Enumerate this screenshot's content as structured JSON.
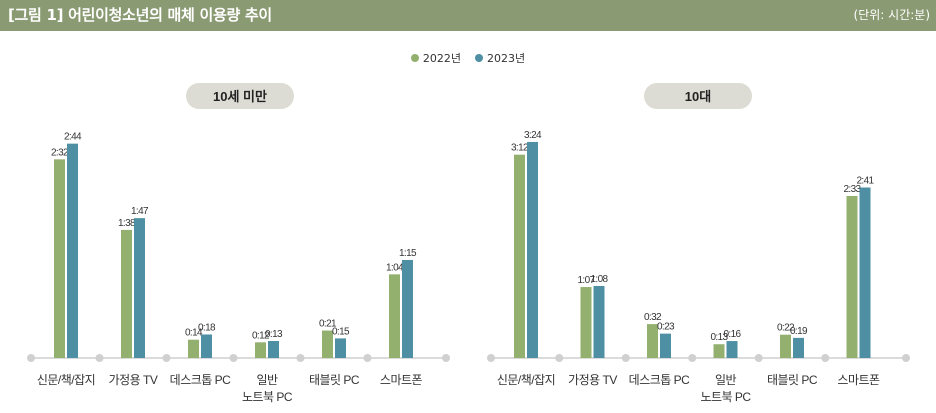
{
  "header": {
    "title": "[그림 1]  어린이청소년의 매체 이용량 추이",
    "unit": "(단위: 시간:분)"
  },
  "colors": {
    "header_bg": "#8a9a72",
    "series_2022": "#93b06e",
    "series_2023": "#4e8fa3",
    "panel_label_bg": "#dcdcd4",
    "axis": "#cfcfcf"
  },
  "chart_data": [
    {
      "type": "bar",
      "title": "10세 미만",
      "categories": [
        "신문/책/잡지",
        "가정용 TV",
        "데스크톱 PC",
        "일반\n노트북 PC",
        "태블릿 PC",
        "스마트폰"
      ],
      "series": [
        {
          "name": "2022년",
          "values": [
            152,
            98,
            14,
            12,
            21,
            64
          ],
          "labels": [
            "2:32",
            "1:38",
            "0:14",
            "0:12",
            "0:21",
            "1:04"
          ]
        },
        {
          "name": "2023년",
          "values": [
            164,
            107,
            18,
            13,
            15,
            75
          ],
          "labels": [
            "2:44",
            "1:47",
            "0:18",
            "0:13",
            "0:15",
            "1:15"
          ]
        }
      ],
      "unit": "분",
      "ylim": [
        0,
        210
      ],
      "grid": false
    },
    {
      "type": "bar",
      "title": "10대",
      "categories": [
        "신문/책/잡지",
        "가정용 TV",
        "데스크톱 PC",
        "일반\n노트북 PC",
        "태블릿 PC",
        "스마트폰"
      ],
      "series": [
        {
          "name": "2022년",
          "values": [
            192,
            67,
            32,
            13,
            22,
            153
          ],
          "labels": [
            "3:12",
            "1:07",
            "0:32",
            "0:13",
            "0:22",
            "2:33"
          ]
        },
        {
          "name": "2023년",
          "values": [
            204,
            68,
            23,
            16,
            19,
            161
          ],
          "labels": [
            "3:24",
            "1:08",
            "0:23",
            "0:16",
            "0:19",
            "2:41"
          ]
        }
      ],
      "unit": "분",
      "ylim": [
        0,
        250
      ],
      "grid": false
    }
  ]
}
